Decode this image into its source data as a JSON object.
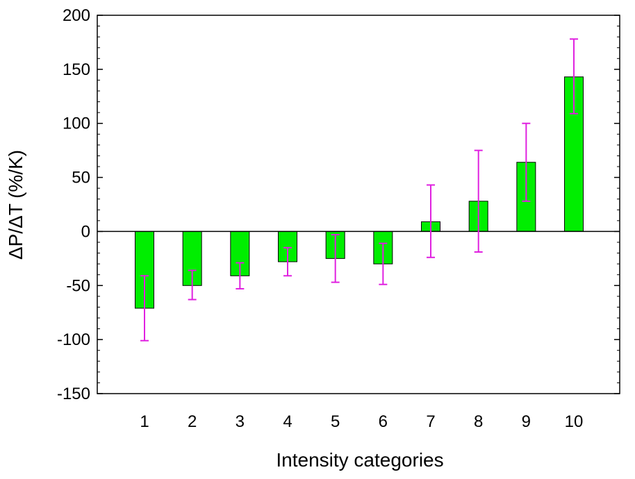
{
  "chart_data": {
    "type": "bar",
    "title": "",
    "xlabel": "Intensity categories",
    "ylabel": "ΔP/ΔT (%/K)",
    "categories": [
      "1",
      "2",
      "3",
      "4",
      "5",
      "6",
      "7",
      "8",
      "9",
      "10"
    ],
    "values": [
      -71,
      -50,
      -41,
      -28,
      -25,
      -30,
      9,
      28,
      64,
      143
    ],
    "error_low": [
      -101,
      -63,
      -53,
      -41,
      -47,
      -49,
      -24,
      -19,
      28,
      109
    ],
    "error_high": [
      -41,
      -36,
      -29,
      -15,
      -3,
      -11,
      43,
      75,
      100,
      178
    ],
    "ylim": [
      -150,
      200
    ],
    "yticks": [
      -150,
      -100,
      -50,
      0,
      50,
      100,
      150,
      200
    ],
    "ytick_labels": [
      "-150",
      "-100",
      "-50",
      "0",
      "50",
      "100",
      "150",
      "200"
    ],
    "grid": false,
    "legend": "none",
    "colors": {
      "bar_fill": "#00ee00",
      "bar_stroke": "#000000",
      "error_bar": "#e020e0",
      "axis": "#000000",
      "zero_line": "#000000"
    }
  }
}
